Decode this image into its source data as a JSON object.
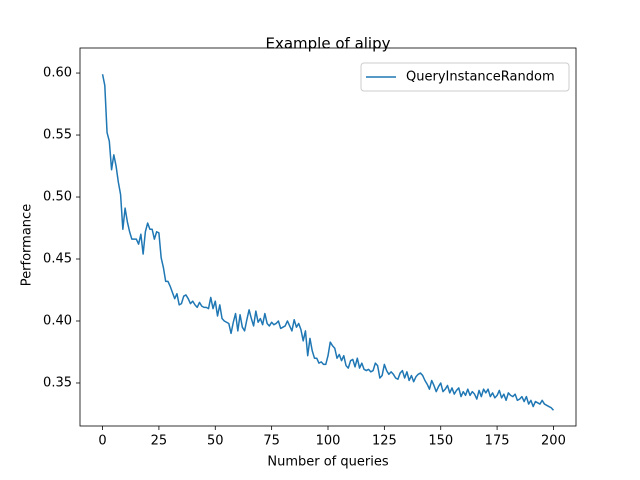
{
  "chart_data": {
    "type": "line",
    "title": "Example of alipy",
    "xlabel": "Number of queries",
    "ylabel": "Performance",
    "x": [
      0,
      1,
      2,
      3,
      4,
      5,
      6,
      7,
      8,
      9,
      10,
      11,
      12,
      13,
      14,
      15,
      16,
      17,
      18,
      19,
      20,
      21,
      22,
      23,
      24,
      25,
      26,
      27,
      28,
      29,
      30,
      31,
      32,
      33,
      34,
      35,
      36,
      37,
      38,
      39,
      40,
      41,
      42,
      43,
      44,
      45,
      46,
      47,
      48,
      49,
      50,
      51,
      52,
      53,
      54,
      55,
      56,
      57,
      58,
      59,
      60,
      61,
      62,
      63,
      64,
      65,
      66,
      67,
      68,
      69,
      70,
      71,
      72,
      73,
      74,
      75,
      76,
      77,
      78,
      79,
      80,
      81,
      82,
      83,
      84,
      85,
      86,
      87,
      88,
      89,
      90,
      91,
      92,
      93,
      94,
      95,
      96,
      97,
      98,
      99,
      100,
      101,
      102,
      103,
      104,
      105,
      106,
      107,
      108,
      109,
      110,
      111,
      112,
      113,
      114,
      115,
      116,
      117,
      118,
      119,
      120,
      121,
      122,
      123,
      124,
      125,
      126,
      127,
      128,
      129,
      130,
      131,
      132,
      133,
      134,
      135,
      136,
      137,
      138,
      139,
      140,
      141,
      142,
      143,
      144,
      145,
      146,
      147,
      148,
      149,
      150,
      151,
      152,
      153,
      154,
      155,
      156,
      157,
      158,
      159,
      160,
      161,
      162,
      163,
      164,
      165,
      166,
      167,
      168,
      169,
      170,
      171,
      172,
      173,
      174,
      175,
      176,
      177,
      178,
      179,
      180,
      181,
      182,
      183,
      184,
      185,
      186,
      187,
      188,
      189,
      190,
      191,
      192,
      193,
      194,
      195,
      196,
      197,
      198,
      199,
      200
    ],
    "series": [
      {
        "name": "QueryInstanceRandom",
        "color": "#1f77b4",
        "values": [
          0.599,
          0.59,
          0.552,
          0.545,
          0.522,
          0.534,
          0.525,
          0.512,
          0.502,
          0.474,
          0.491,
          0.48,
          0.472,
          0.466,
          0.466,
          0.466,
          0.462,
          0.47,
          0.454,
          0.472,
          0.479,
          0.474,
          0.474,
          0.466,
          0.472,
          0.471,
          0.451,
          0.443,
          0.432,
          0.432,
          0.428,
          0.423,
          0.418,
          0.422,
          0.413,
          0.414,
          0.42,
          0.421,
          0.418,
          0.414,
          0.416,
          0.413,
          0.411,
          0.415,
          0.412,
          0.411,
          0.411,
          0.41,
          0.419,
          0.41,
          0.416,
          0.404,
          0.413,
          0.402,
          0.4,
          0.399,
          0.398,
          0.39,
          0.399,
          0.406,
          0.392,
          0.405,
          0.395,
          0.392,
          0.401,
          0.409,
          0.402,
          0.396,
          0.408,
          0.399,
          0.402,
          0.397,
          0.406,
          0.398,
          0.396,
          0.399,
          0.397,
          0.398,
          0.4,
          0.394,
          0.395,
          0.396,
          0.4,
          0.396,
          0.392,
          0.401,
          0.395,
          0.398,
          0.393,
          0.384,
          0.392,
          0.372,
          0.386,
          0.376,
          0.37,
          0.37,
          0.366,
          0.367,
          0.365,
          0.365,
          0.372,
          0.383,
          0.38,
          0.378,
          0.37,
          0.373,
          0.368,
          0.372,
          0.364,
          0.362,
          0.368,
          0.369,
          0.363,
          0.37,
          0.362,
          0.366,
          0.361,
          0.36,
          0.361,
          0.359,
          0.36,
          0.366,
          0.364,
          0.354,
          0.356,
          0.365,
          0.36,
          0.357,
          0.359,
          0.357,
          0.354,
          0.353,
          0.358,
          0.36,
          0.354,
          0.359,
          0.352,
          0.356,
          0.351,
          0.355,
          0.357,
          0.358,
          0.356,
          0.352,
          0.349,
          0.345,
          0.352,
          0.348,
          0.343,
          0.347,
          0.35,
          0.343,
          0.345,
          0.348,
          0.342,
          0.346,
          0.341,
          0.344,
          0.346,
          0.339,
          0.343,
          0.34,
          0.345,
          0.34,
          0.343,
          0.341,
          0.337,
          0.344,
          0.339,
          0.345,
          0.342,
          0.345,
          0.339,
          0.342,
          0.338,
          0.34,
          0.344,
          0.338,
          0.341,
          0.336,
          0.342,
          0.34,
          0.339,
          0.341,
          0.336,
          0.337,
          0.339,
          0.335,
          0.339,
          0.333,
          0.336,
          0.331,
          0.335,
          0.334,
          0.333,
          0.336,
          0.333,
          0.332,
          0.331,
          0.33,
          0.328
        ]
      }
    ],
    "xlim": [
      -10,
      210
    ],
    "xticks": [
      0,
      25,
      50,
      75,
      100,
      125,
      150,
      175,
      200
    ],
    "ylim": [
      0.3153,
      0.6202
    ],
    "yticks": [
      0.35,
      {
        "value": 0.4,
        "label": "0.40"
      },
      0.45,
      {
        "value": 0.5,
        "label": "0.50"
      },
      0.55,
      {
        "value": 0.6,
        "label": "0.60"
      }
    ],
    "legend": "upper right"
  }
}
